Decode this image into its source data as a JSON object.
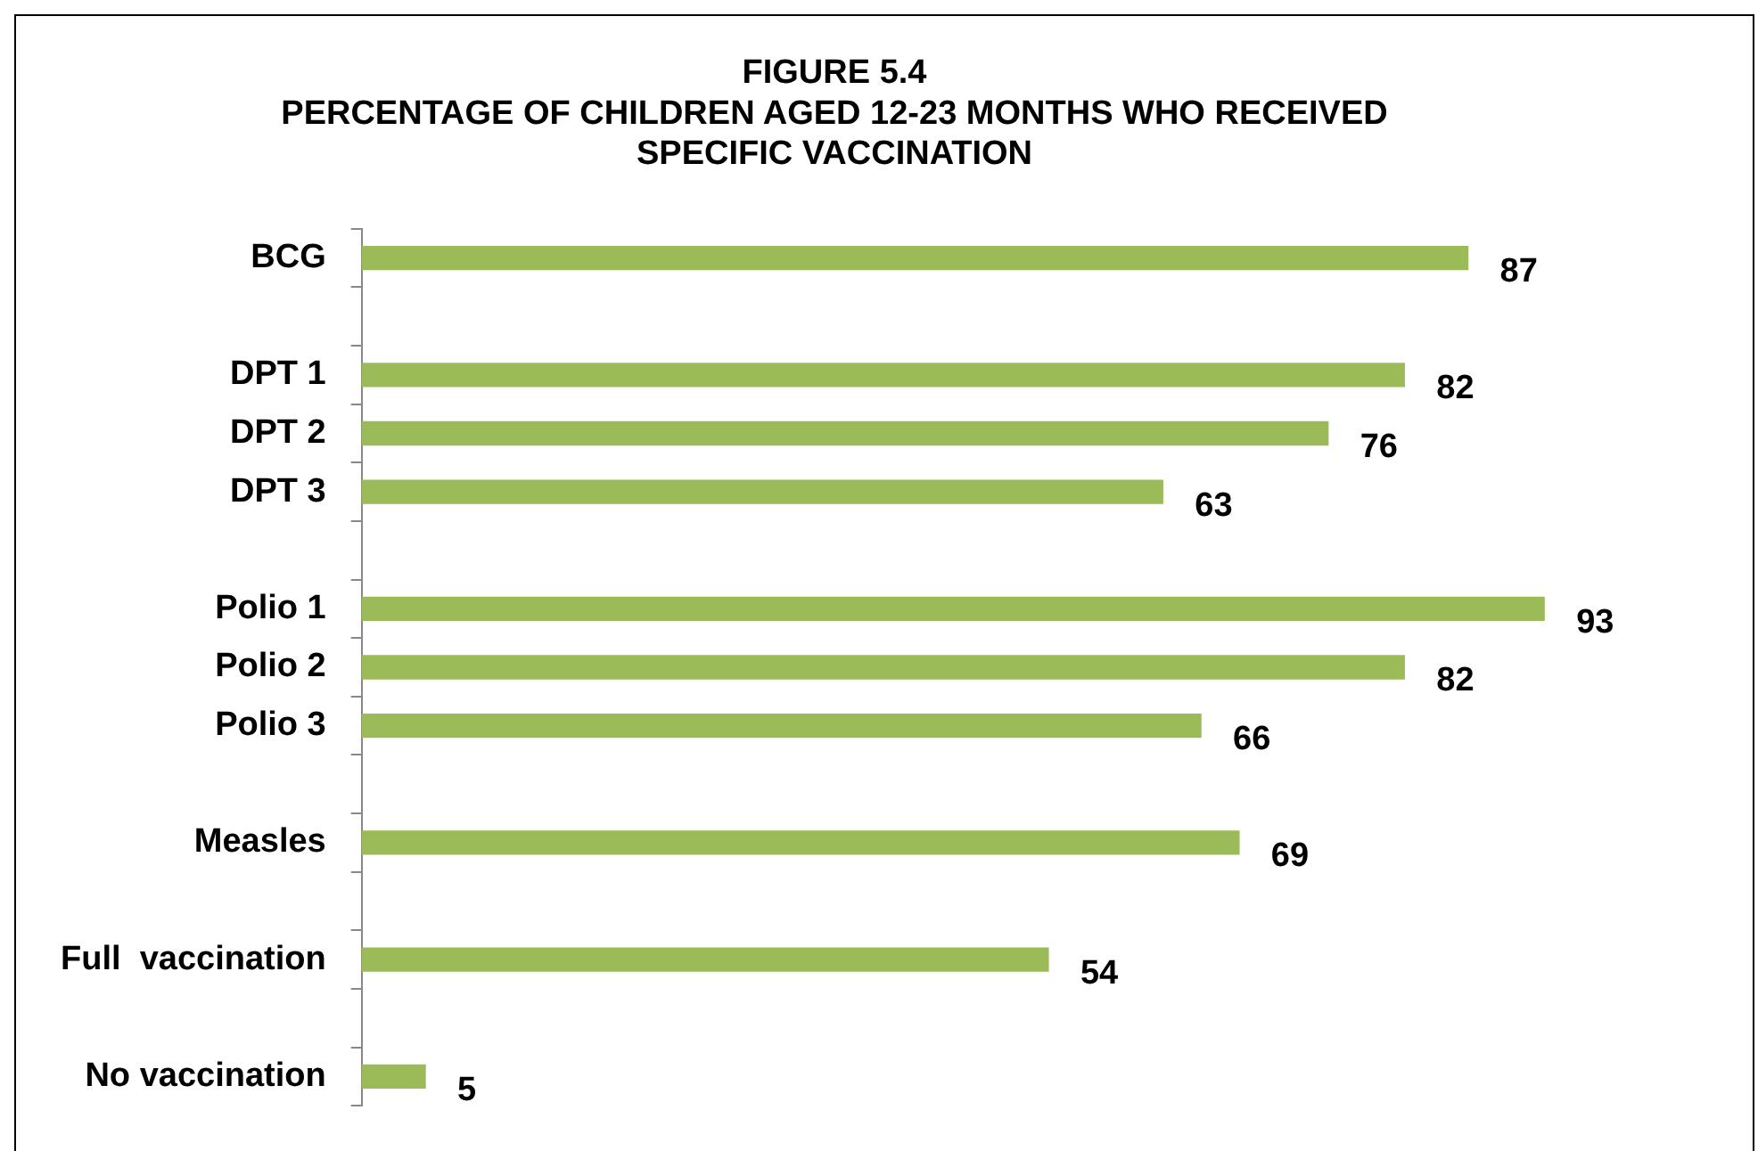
{
  "chart_data": {
    "type": "bar",
    "orientation": "horizontal",
    "title": "FIGURE 5.4",
    "subtitle": "PERCENTAGE OF CHILDREN AGED 12-23 MONTHS WHO RECEIVED SPECIFIC VACCINATION",
    "categories": [
      "BCG",
      null,
      "DPT 1",
      "DPT 2",
      "DPT 3",
      null,
      "Polio 1",
      "Polio 2",
      "Polio 3",
      null,
      "Measles",
      null,
      "Full  vaccination",
      null,
      "No vaccination"
    ],
    "values": [
      87,
      null,
      82,
      76,
      63,
      null,
      93,
      82,
      66,
      null,
      69,
      null,
      54,
      null,
      5
    ],
    "color": "#9bbb59",
    "data_labels": true,
    "grid": false,
    "legend": false,
    "tick_labels": "y"
  }
}
